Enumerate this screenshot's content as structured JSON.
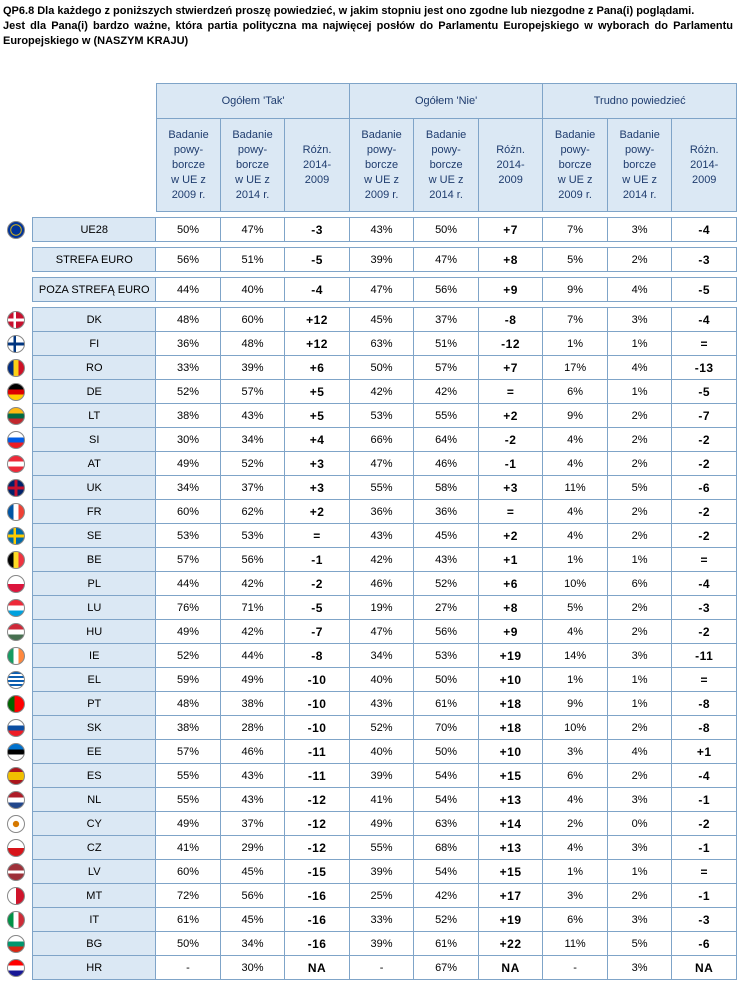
{
  "question": {
    "line1": "QP6.8 Dla każdego z poniższych stwierdzeń proszę powiedzieć, w jakim stopniu jest ono zgodne lub niezgodne z Pana(i) poglądami.",
    "line2": "Jest dla Pana(i) bardzo ważne, która partia polityczna ma najwięcej posłów do Parlamentu Europejskiego w wyborach do Parlamentu Europejskiego w (NASZYM KRAJU)"
  },
  "groups": [
    "Ogółem 'Tak'",
    "Ogółem 'Nie'",
    "Trudno powiedzieć"
  ],
  "subheaders": [
    [
      "Badanie",
      "powy-",
      "borcze",
      "w UE z",
      "2009 r."
    ],
    [
      "Badanie",
      "powy-",
      "borcze",
      "w UE z",
      "2014 r."
    ],
    [
      "Różn.",
      "2014-",
      "2009"
    ]
  ],
  "colors": {
    "header_bg": "#dbe8f4",
    "header_text": "#1f3c6e",
    "border": "#7fa4c8"
  },
  "rows": [
    {
      "label": "UE28",
      "flag": "eu",
      "v": [
        "50%",
        "47%",
        "-3",
        "43%",
        "50%",
        "+7",
        "7%",
        "3%",
        "-4"
      ]
    },
    {
      "label": "STREFA EURO",
      "flag": "",
      "v": [
        "56%",
        "51%",
        "-5",
        "39%",
        "47%",
        "+8",
        "5%",
        "2%",
        "-3"
      ]
    },
    {
      "label": "POZA STREFĄ EURO",
      "flag": "",
      "v": [
        "44%",
        "40%",
        "-4",
        "47%",
        "56%",
        "+9",
        "9%",
        "4%",
        "-5"
      ]
    },
    {
      "label": "DK",
      "flag": "dk",
      "v": [
        "48%",
        "60%",
        "+12",
        "45%",
        "37%",
        "-8",
        "7%",
        "3%",
        "-4"
      ]
    },
    {
      "label": "FI",
      "flag": "fi",
      "v": [
        "36%",
        "48%",
        "+12",
        "63%",
        "51%",
        "-12",
        "1%",
        "1%",
        "="
      ]
    },
    {
      "label": "RO",
      "flag": "ro",
      "v": [
        "33%",
        "39%",
        "+6",
        "50%",
        "57%",
        "+7",
        "17%",
        "4%",
        "-13"
      ]
    },
    {
      "label": "DE",
      "flag": "de",
      "v": [
        "52%",
        "57%",
        "+5",
        "42%",
        "42%",
        "=",
        "6%",
        "1%",
        "-5"
      ]
    },
    {
      "label": "LT",
      "flag": "lt",
      "v": [
        "38%",
        "43%",
        "+5",
        "53%",
        "55%",
        "+2",
        "9%",
        "2%",
        "-7"
      ]
    },
    {
      "label": "SI",
      "flag": "si",
      "v": [
        "30%",
        "34%",
        "+4",
        "66%",
        "64%",
        "-2",
        "4%",
        "2%",
        "-2"
      ]
    },
    {
      "label": "AT",
      "flag": "at",
      "v": [
        "49%",
        "52%",
        "+3",
        "47%",
        "46%",
        "-1",
        "4%",
        "2%",
        "-2"
      ]
    },
    {
      "label": "UK",
      "flag": "uk",
      "v": [
        "34%",
        "37%",
        "+3",
        "55%",
        "58%",
        "+3",
        "11%",
        "5%",
        "-6"
      ]
    },
    {
      "label": "FR",
      "flag": "fr",
      "v": [
        "60%",
        "62%",
        "+2",
        "36%",
        "36%",
        "=",
        "4%",
        "2%",
        "-2"
      ]
    },
    {
      "label": "SE",
      "flag": "se",
      "v": [
        "53%",
        "53%",
        "=",
        "43%",
        "45%",
        "+2",
        "4%",
        "2%",
        "-2"
      ]
    },
    {
      "label": "BE",
      "flag": "be",
      "v": [
        "57%",
        "56%",
        "-1",
        "42%",
        "43%",
        "+1",
        "1%",
        "1%",
        "="
      ]
    },
    {
      "label": "PL",
      "flag": "pl",
      "v": [
        "44%",
        "42%",
        "-2",
        "46%",
        "52%",
        "+6",
        "10%",
        "6%",
        "-4"
      ]
    },
    {
      "label": "LU",
      "flag": "lu",
      "v": [
        "76%",
        "71%",
        "-5",
        "19%",
        "27%",
        "+8",
        "5%",
        "2%",
        "-3"
      ]
    },
    {
      "label": "HU",
      "flag": "hu",
      "v": [
        "49%",
        "42%",
        "-7",
        "47%",
        "56%",
        "+9",
        "4%",
        "2%",
        "-2"
      ]
    },
    {
      "label": "IE",
      "flag": "ie",
      "v": [
        "52%",
        "44%",
        "-8",
        "34%",
        "53%",
        "+19",
        "14%",
        "3%",
        "-11"
      ]
    },
    {
      "label": "EL",
      "flag": "el",
      "v": [
        "59%",
        "49%",
        "-10",
        "40%",
        "50%",
        "+10",
        "1%",
        "1%",
        "="
      ]
    },
    {
      "label": "PT",
      "flag": "pt",
      "v": [
        "48%",
        "38%",
        "-10",
        "43%",
        "61%",
        "+18",
        "9%",
        "1%",
        "-8"
      ]
    },
    {
      "label": "SK",
      "flag": "sk",
      "v": [
        "38%",
        "28%",
        "-10",
        "52%",
        "70%",
        "+18",
        "10%",
        "2%",
        "-8"
      ]
    },
    {
      "label": "EE",
      "flag": "ee",
      "v": [
        "57%",
        "46%",
        "-11",
        "40%",
        "50%",
        "+10",
        "3%",
        "4%",
        "+1"
      ]
    },
    {
      "label": "ES",
      "flag": "es",
      "v": [
        "55%",
        "43%",
        "-11",
        "39%",
        "54%",
        "+15",
        "6%",
        "2%",
        "-4"
      ]
    },
    {
      "label": "NL",
      "flag": "nl",
      "v": [
        "55%",
        "43%",
        "-12",
        "41%",
        "54%",
        "+13",
        "4%",
        "3%",
        "-1"
      ]
    },
    {
      "label": "CY",
      "flag": "cy",
      "v": [
        "49%",
        "37%",
        "-12",
        "49%",
        "63%",
        "+14",
        "2%",
        "0%",
        "-2"
      ]
    },
    {
      "label": "CZ",
      "flag": "cz",
      "v": [
        "41%",
        "29%",
        "-12",
        "55%",
        "68%",
        "+13",
        "4%",
        "3%",
        "-1"
      ]
    },
    {
      "label": "LV",
      "flag": "lv",
      "v": [
        "60%",
        "45%",
        "-15",
        "39%",
        "54%",
        "+15",
        "1%",
        "1%",
        "="
      ]
    },
    {
      "label": "MT",
      "flag": "mt",
      "v": [
        "72%",
        "56%",
        "-16",
        "25%",
        "42%",
        "+17",
        "3%",
        "2%",
        "-1"
      ]
    },
    {
      "label": "IT",
      "flag": "it",
      "v": [
        "61%",
        "45%",
        "-16",
        "33%",
        "52%",
        "+19",
        "6%",
        "3%",
        "-3"
      ]
    },
    {
      "label": "BG",
      "flag": "bg",
      "v": [
        "50%",
        "34%",
        "-16",
        "39%",
        "61%",
        "+22",
        "11%",
        "5%",
        "-6"
      ]
    },
    {
      "label": "HR",
      "flag": "hr",
      "v": [
        "-",
        "30%",
        "NA",
        "-",
        "67%",
        "NA",
        "-",
        "3%",
        "NA"
      ]
    }
  ]
}
